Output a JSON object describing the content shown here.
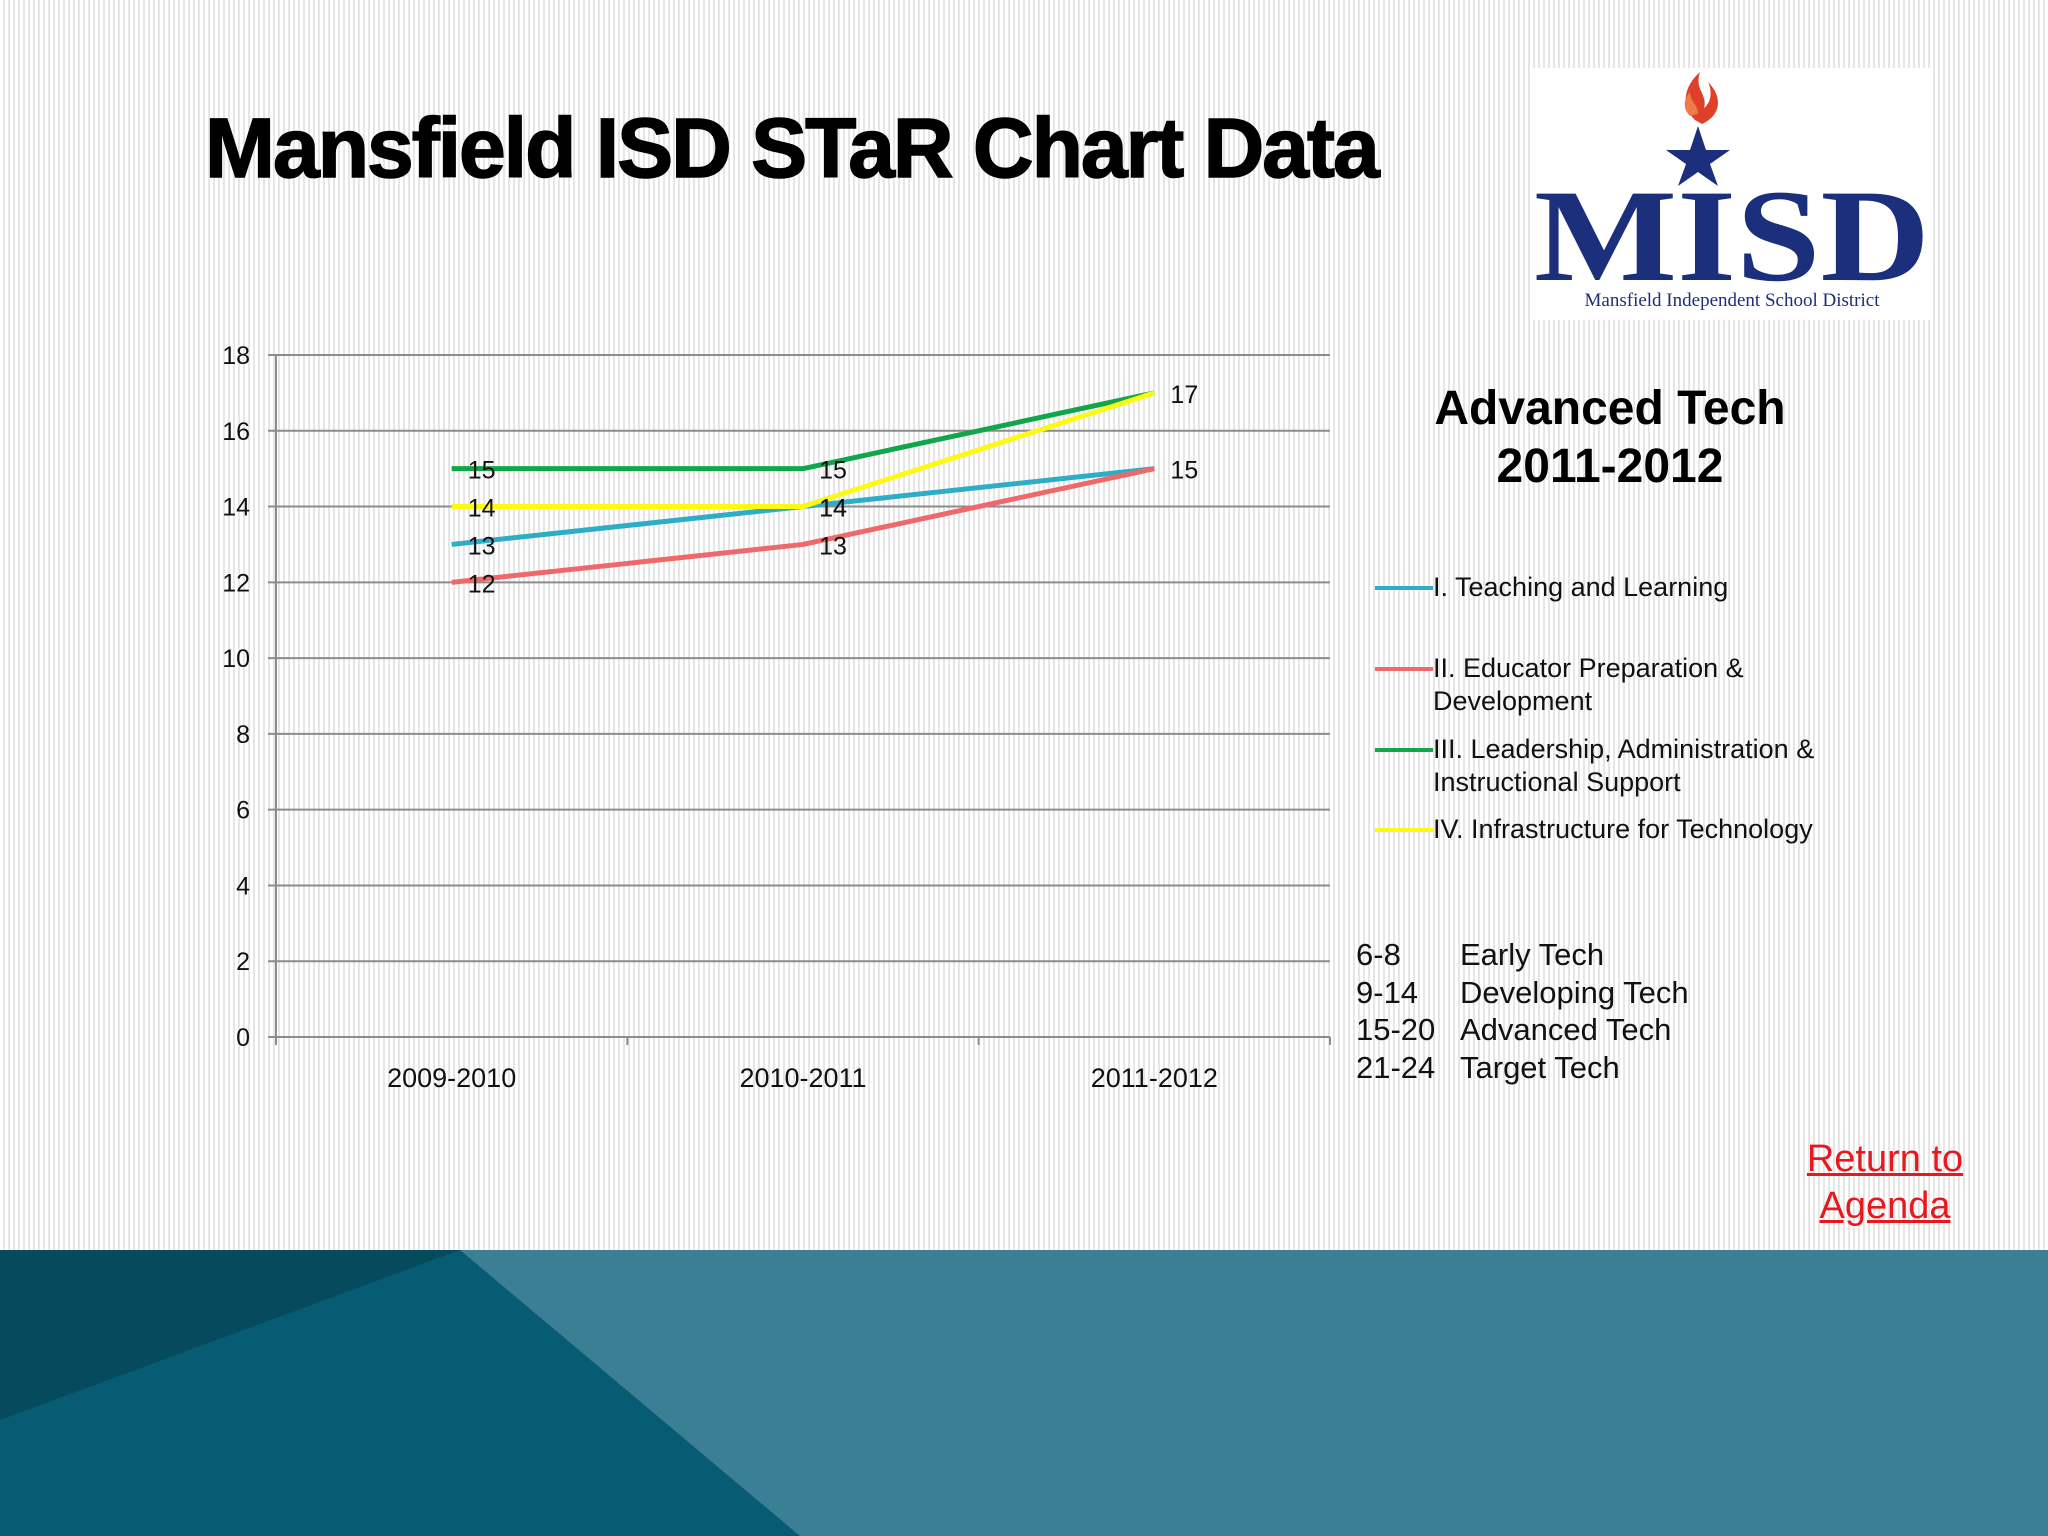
{
  "title": "Mansfield ISD STaR Chart Data",
  "logo": {
    "acronym": "MISD",
    "subtitle": "Mansfield Independent School District",
    "brand_color": "#1b2f7c",
    "flame_color": "#e0402a"
  },
  "chart_heading": {
    "line1": "Advanced Tech",
    "line2": "2011-2012"
  },
  "scale": [
    {
      "range": "6-8",
      "label": "Early Tech"
    },
    {
      "range": "9-14",
      "label": "Developing Tech"
    },
    {
      "range": "15-20",
      "label": "Advanced Tech"
    },
    {
      "range": "21-24",
      "label": "Target Tech"
    }
  ],
  "return_link": {
    "line1": "Return to",
    "line2": "Agenda",
    "color": "#e8181e"
  },
  "chart_data": {
    "type": "line",
    "categories": [
      "2009-2010",
      "2010-2011",
      "2011-2012"
    ],
    "ylim": [
      0,
      18
    ],
    "yticks": [
      0,
      2,
      4,
      6,
      8,
      10,
      12,
      14,
      16,
      18
    ],
    "grid": true,
    "legend_position": "right",
    "series": [
      {
        "name": "I. Teaching and Learning",
        "values": [
          13,
          14,
          15
        ],
        "color": "#2eaec6",
        "labels": [
          "13",
          "14",
          ""
        ]
      },
      {
        "name": "II. Educator Preparation & Development",
        "values": [
          12,
          13,
          15
        ],
        "color": "#f0696a",
        "labels": [
          "12",
          "13",
          "15"
        ]
      },
      {
        "name": "III. Leadership, Administration & Instructional Support",
        "values": [
          15,
          15,
          17
        ],
        "color": "#12a64a",
        "labels": [
          "15",
          "15",
          ""
        ]
      },
      {
        "name": "IV. Infrastructure for Technology",
        "values": [
          14,
          14,
          17
        ],
        "color": "#fdf814",
        "labels": [
          "14",
          "14",
          "17"
        ]
      }
    ]
  }
}
